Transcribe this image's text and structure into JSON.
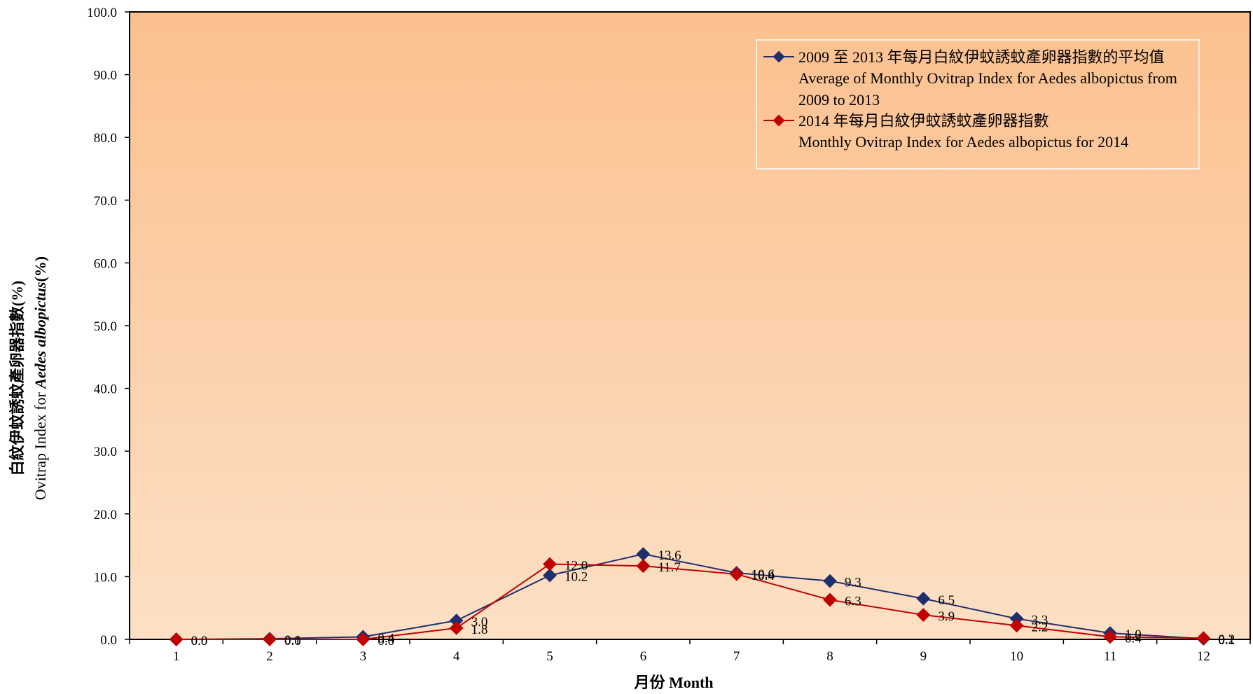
{
  "chart_data": {
    "type": "line",
    "title": "",
    "categories": [
      "1",
      "2",
      "3",
      "4",
      "5",
      "6",
      "7",
      "8",
      "9",
      "10",
      "11",
      "12"
    ],
    "xlabel": "月份 Month",
    "ylabel_zh": "白紋伊蚊誘蚊產卵器指數(%)",
    "ylabel_en_prefix": "Ovitrap Index for ",
    "ylabel_en_species": "Aedes albopictus",
    "ylabel_en_suffix": "(%)",
    "ylim": [
      0,
      100
    ],
    "yticks": [
      "0.0",
      "10.0",
      "20.0",
      "30.0",
      "40.0",
      "50.0",
      "60.0",
      "70.0",
      "80.0",
      "90.0",
      "100.0"
    ],
    "grid": false,
    "legend_position": "top-right",
    "series": [
      {
        "name_line1": "2009 至 2013 年每月白紋伊蚊誘蚊產卵器指數的平均值",
        "name_line2": "Average of Monthly Ovitrap Index  for Aedes albopictus from",
        "name_line3": "2009 to 2013",
        "color": "#1f2f6e",
        "values": [
          0.0,
          0.1,
          0.4,
          3.0,
          10.2,
          13.6,
          10.6,
          9.3,
          6.5,
          3.3,
          1.0,
          0.1
        ],
        "labels": [
          "0.0",
          "0.1",
          "0.4",
          "3.0",
          "10.2",
          "13.6",
          "10.6",
          "9.3",
          "6.5",
          "3.3",
          "1.0",
          "0.1"
        ]
      },
      {
        "name_line1": "2014 年每月白紋伊蚊誘蚊產卵器指數",
        "name_line2": "Monthly Ovitrap Index for Aedes albopictus for 2014",
        "color": "#c00000",
        "values": [
          0.0,
          0.0,
          0.0,
          1.8,
          12.0,
          11.7,
          10.4,
          6.3,
          3.9,
          2.2,
          0.4,
          0.2
        ],
        "labels": [
          "0.0",
          "0.0",
          "0.0",
          "1.8",
          "12.0",
          "11.7",
          "10.4",
          "6.3",
          "3.9",
          "2.2",
          "0.4",
          "0.2"
        ]
      }
    ]
  },
  "colors": {
    "plot_top": "#fbc08f",
    "plot_bottom": "#fde0c4"
  }
}
